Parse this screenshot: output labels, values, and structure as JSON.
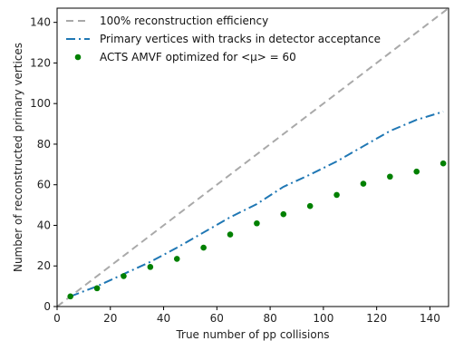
{
  "chart_data": {
    "type": "line",
    "title": "",
    "xlabel": "True number of pp collisions",
    "ylabel": "Number of reconstructed primary vertices",
    "xlim": [
      0,
      147
    ],
    "ylim": [
      0,
      147
    ],
    "xticks": [
      0,
      20,
      40,
      60,
      80,
      100,
      120,
      140
    ],
    "yticks": [
      0,
      20,
      40,
      60,
      80,
      100,
      120,
      140
    ],
    "grid": false,
    "legend_position": "top-left",
    "series": [
      {
        "name": "100% reconstruction efficiency",
        "style": "dashed",
        "color": "#a9a9a9",
        "x": [
          0,
          147
        ],
        "y": [
          0,
          147
        ]
      },
      {
        "name": "Primary vertices with tracks in detector acceptance",
        "style": "dashdot",
        "color": "#1f77b4",
        "x": [
          5,
          15,
          25,
          35,
          45,
          55,
          65,
          75,
          85,
          95,
          105,
          115,
          125,
          135,
          145
        ],
        "y": [
          5,
          10,
          16,
          22,
          29,
          36.5,
          44,
          50.5,
          59,
          65,
          71.5,
          79,
          86.5,
          92,
          96
        ]
      },
      {
        "name": "ACTS AMVF optimized for <μ> = 60",
        "style": "scatter",
        "color": "#008000",
        "x": [
          5,
          15,
          25,
          35,
          45,
          55,
          65,
          75,
          85,
          95,
          105,
          115,
          125,
          135,
          145
        ],
        "y": [
          5,
          9,
          15,
          19.5,
          23.5,
          29,
          35.5,
          41,
          45.5,
          49.5,
          55,
          60.5,
          64,
          66.5,
          70.5
        ]
      }
    ]
  }
}
